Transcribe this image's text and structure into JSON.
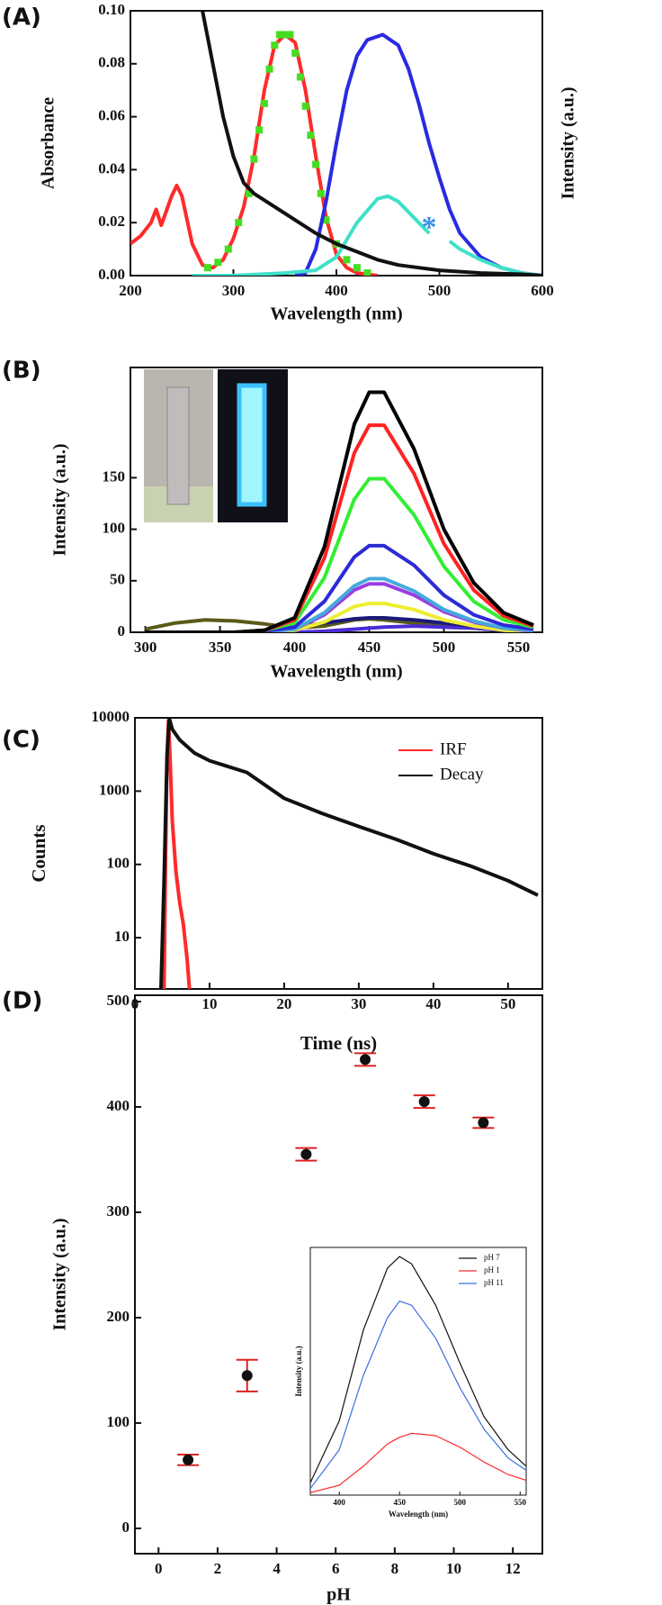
{
  "chart_data": [
    {
      "type": "line",
      "panel_label": "(A)",
      "xlabel": "Wavelength (nm)",
      "ylabel": "Absorbance",
      "ylabel2": "Intensity (a.u.)",
      "xlim": [
        200,
        600
      ],
      "ylim": [
        0,
        0.1
      ],
      "xticks": [
        200,
        300,
        400,
        500,
        600
      ],
      "yticks": [
        {
          "value": 0,
          "label": "0.00"
        },
        {
          "value": 0.02,
          "label": "0.02"
        },
        {
          "value": 0.04,
          "label": "0.04"
        },
        {
          "value": 0.06,
          "label": "0.06"
        },
        {
          "value": 0.08,
          "label": "0.08"
        },
        {
          "value": 0.1,
          "label": "0.10"
        }
      ],
      "series": [
        {
          "color": "#ff2a2a",
          "x": [
            200,
            210,
            220,
            225,
            230,
            240,
            245,
            250,
            260,
            270,
            280,
            290,
            300,
            310,
            320,
            330,
            340,
            350,
            360,
            370,
            380,
            390,
            400,
            410,
            420,
            440
          ],
          "values": [
            0.012,
            0.015,
            0.02,
            0.025,
            0.019,
            0.03,
            0.034,
            0.03,
            0.012,
            0.004,
            0.003,
            0.006,
            0.014,
            0.026,
            0.045,
            0.07,
            0.087,
            0.091,
            0.088,
            0.07,
            0.045,
            0.022,
            0.008,
            0.003,
            0.001,
            0
          ]
        },
        {
          "color": "#44dd22",
          "marker": "square",
          "x": [
            275,
            285,
            295,
            305,
            315,
            320,
            325,
            330,
            335,
            340,
            345,
            350,
            355,
            360,
            365,
            370,
            375,
            380,
            385,
            390,
            400,
            410,
            420,
            430
          ],
          "values": [
            0.003,
            0.005,
            0.01,
            0.02,
            0.031,
            0.044,
            0.055,
            0.065,
            0.078,
            0.087,
            0.091,
            0.091,
            0.091,
            0.084,
            0.075,
            0.064,
            0.053,
            0.042,
            0.031,
            0.021,
            0.012,
            0.006,
            0.003,
            0.001
          ]
        },
        {
          "color": "#2a2ae0",
          "x": [
            360,
            370,
            380,
            390,
            400,
            410,
            420,
            430,
            445,
            460,
            470,
            480,
            490,
            500,
            510,
            520,
            540,
            560,
            580,
            600
          ],
          "values": [
            0,
            0.001,
            0.01,
            0.028,
            0.05,
            0.07,
            0.083,
            0.089,
            0.091,
            0.087,
            0.078,
            0.065,
            0.05,
            0.037,
            0.025,
            0.016,
            0.007,
            0.003,
            0.001,
            0
          ]
        },
        {
          "color": "#40e0c8",
          "x": [
            260,
            300,
            350,
            380,
            400,
            420,
            440,
            450,
            460,
            480,
            490,
            500,
            510,
            520,
            540,
            560,
            580,
            600
          ],
          "values": [
            0,
            0,
            0.001,
            0.002,
            0.007,
            0.02,
            0.029,
            0.03,
            0.028,
            0.02,
            0.016,
            null,
            0.013,
            0.01,
            0.006,
            0.003,
            0.001,
            0
          ]
        },
        {
          "color": "#111111",
          "x": [
            270,
            280,
            290,
            300,
            310,
            320,
            340,
            360,
            380,
            400,
            420,
            440,
            460,
            480,
            500,
            540,
            580,
            600
          ],
          "values": [
            0.1,
            0.08,
            0.06,
            0.045,
            0.035,
            0.031,
            0.026,
            0.021,
            0.016,
            0.012,
            0.009,
            0.006,
            0.004,
            0.003,
            0.002,
            0.001,
            0.0005,
            0
          ]
        }
      ],
      "annotations": [
        {
          "text": "*",
          "x": 490,
          "y": 0.02,
          "color": "#3a8ee6"
        }
      ]
    },
    {
      "type": "line",
      "panel_label": "(B)",
      "xlabel": "Wavelength (nm)",
      "ylabel": "Intensity (a.u.)",
      "xlim": [
        290,
        566
      ],
      "ylim": [
        0,
        257
      ],
      "xticks": [
        300,
        350,
        400,
        450,
        500,
        550
      ],
      "yticks": [
        0,
        50,
        100,
        150
      ],
      "series": [
        {
          "color": "#5a5a1a",
          "x": [
            300,
            320,
            340,
            360,
            380,
            400,
            420,
            440,
            450,
            460,
            480,
            500,
            520,
            540,
            560
          ],
          "values": [
            3,
            9,
            12,
            11,
            8,
            4,
            6,
            12,
            13,
            12,
            9,
            6,
            4,
            2,
            1
          ]
        },
        {
          "color": "#4b2bd6",
          "x": [
            300,
            320,
            340,
            360,
            380,
            400,
            420,
            440,
            450,
            460,
            480,
            500,
            520,
            540,
            560
          ],
          "values": [
            0,
            0,
            0,
            0,
            0,
            0,
            1,
            3,
            4,
            5,
            6,
            5,
            4,
            2,
            1
          ]
        },
        {
          "color": "#1a1a7a",
          "x": [
            300,
            320,
            340,
            360,
            380,
            400,
            420,
            440,
            450,
            460,
            480,
            500,
            520,
            540,
            560
          ],
          "values": [
            0,
            0,
            0,
            0,
            2,
            5,
            9,
            13,
            14,
            14,
            12,
            9,
            6,
            3,
            1
          ]
        },
        {
          "color": "#eeee33",
          "x": [
            300,
            320,
            340,
            360,
            380,
            400,
            420,
            440,
            450,
            460,
            480,
            500,
            520,
            540,
            560
          ],
          "values": [
            0,
            0,
            0,
            0,
            0,
            2,
            10,
            25,
            28,
            28,
            22,
            12,
            6,
            2,
            1
          ]
        },
        {
          "color": "#9a3ee0",
          "x": [
            300,
            320,
            340,
            360,
            380,
            400,
            420,
            440,
            450,
            460,
            480,
            500,
            520,
            540,
            560
          ],
          "values": [
            0,
            0,
            0,
            0,
            0,
            3,
            17,
            41,
            47,
            47,
            36,
            20,
            10,
            4,
            1
          ]
        },
        {
          "color": "#44aadd",
          "x": [
            300,
            320,
            340,
            360,
            380,
            400,
            420,
            440,
            450,
            460,
            480,
            500,
            520,
            540,
            560
          ],
          "values": [
            0,
            0,
            0,
            0,
            1,
            3,
            19,
            45,
            52,
            52,
            40,
            22,
            11,
            4,
            2
          ]
        },
        {
          "color": "#2b2bd6",
          "x": [
            300,
            320,
            340,
            360,
            380,
            400,
            420,
            440,
            450,
            460,
            480,
            500,
            520,
            540,
            560
          ],
          "values": [
            0,
            0,
            0,
            0,
            1,
            5,
            30,
            73,
            84,
            84,
            65,
            36,
            17,
            7,
            3
          ]
        },
        {
          "color": "#33ee33",
          "x": [
            300,
            320,
            340,
            360,
            380,
            400,
            420,
            440,
            450,
            460,
            480,
            500,
            520,
            540,
            560
          ],
          "values": [
            0,
            0,
            0,
            0,
            2,
            9,
            53,
            129,
            149,
            149,
            114,
            64,
            30,
            12,
            5
          ]
        },
        {
          "color": "#ff2222",
          "x": [
            300,
            320,
            340,
            360,
            380,
            400,
            420,
            440,
            450,
            460,
            480,
            500,
            520,
            540,
            560
          ],
          "values": [
            0,
            0,
            0,
            0,
            2,
            12,
            72,
            174,
            201,
            201,
            154,
            86,
            41,
            16,
            6
          ]
        },
        {
          "color": "#000000",
          "x": [
            300,
            320,
            340,
            360,
            380,
            400,
            420,
            440,
            450,
            460,
            480,
            500,
            520,
            540,
            560
          ],
          "values": [
            0,
            0,
            0,
            0,
            2,
            14,
            83,
            202,
            233,
            233,
            178,
            100,
            48,
            19,
            7
          ]
        }
      ]
    },
    {
      "type": "line",
      "panel_label": "(C)",
      "xlabel": "Time (ns)",
      "ylabel": "Counts",
      "log_y": true,
      "legend": "top-right",
      "xlim": [
        0,
        54.6
      ],
      "ylim": [
        2,
        10000
      ],
      "xticks": [
        0,
        10,
        20,
        30,
        40,
        50
      ],
      "yticks": [
        10,
        100,
        1000,
        10000
      ],
      "series": [
        {
          "name": "IRF",
          "color": "#ff2a2a",
          "x": [
            3.9,
            4.1,
            4.3,
            4.5,
            4.7,
            5.0,
            5.5,
            6.0,
            6.5,
            7.0,
            7.3
          ],
          "values": [
            2,
            100,
            3000,
            9000,
            3000,
            400,
            80,
            30,
            15,
            5,
            2
          ]
        },
        {
          "name": "Decay",
          "color": "#111111",
          "x": [
            3.5,
            3.9,
            4.3,
            4.6,
            5,
            6,
            8,
            10,
            15,
            20,
            25,
            30,
            35,
            40,
            45,
            50,
            54
          ],
          "values": [
            2,
            60,
            3000,
            9800,
            7000,
            5000,
            3300,
            2600,
            1800,
            800,
            500,
            330,
            220,
            140,
            95,
            60,
            38
          ]
        }
      ]
    },
    {
      "type": "scatter",
      "panel_label": "(D)",
      "xlabel": "pH",
      "ylabel": "Intensity (a.u.)",
      "xlim": [
        -0.8,
        13
      ],
      "ylim": [
        -24,
        506
      ],
      "xticks": [
        0,
        2,
        4,
        6,
        8,
        10,
        12
      ],
      "yticks": [
        0,
        100,
        200,
        300,
        400,
        500
      ],
      "series": [
        {
          "color": "#111111",
          "error_color": "#dd2222",
          "x": [
            1,
            3,
            5,
            7,
            9,
            11
          ],
          "values": [
            65,
            145,
            355,
            445,
            405,
            385
          ],
          "errors": [
            5,
            15,
            6,
            6,
            6,
            5
          ]
        }
      ]
    },
    {
      "type": "line",
      "xlabel": "Wavelength (nm)",
      "ylabel": "Intensity (a.u.)",
      "legend": "top-right",
      "xlim": [
        376,
        555
      ],
      "ylim": [
        0,
        300
      ],
      "xticks": [
        400,
        450,
        500,
        550
      ],
      "series": [
        {
          "name": "pH 7",
          "color": "#111111",
          "x": [
            376,
            400,
            420,
            440,
            450,
            460,
            480,
            500,
            520,
            540,
            555
          ],
          "values": [
            15,
            90,
            200,
            275,
            289,
            280,
            230,
            160,
            95,
            55,
            35
          ]
        },
        {
          "name": "pH 1",
          "color": "#ff2a2a",
          "x": [
            376,
            400,
            420,
            440,
            450,
            460,
            480,
            500,
            520,
            540,
            555
          ],
          "values": [
            3,
            12,
            35,
            62,
            70,
            75,
            72,
            58,
            40,
            25,
            18
          ]
        },
        {
          "name": "pH 11",
          "color": "#3a6fe0",
          "x": [
            376,
            400,
            420,
            440,
            450,
            460,
            480,
            500,
            520,
            540,
            555
          ],
          "values": [
            8,
            55,
            145,
            215,
            235,
            230,
            190,
            130,
            80,
            45,
            30
          ]
        }
      ]
    }
  ]
}
